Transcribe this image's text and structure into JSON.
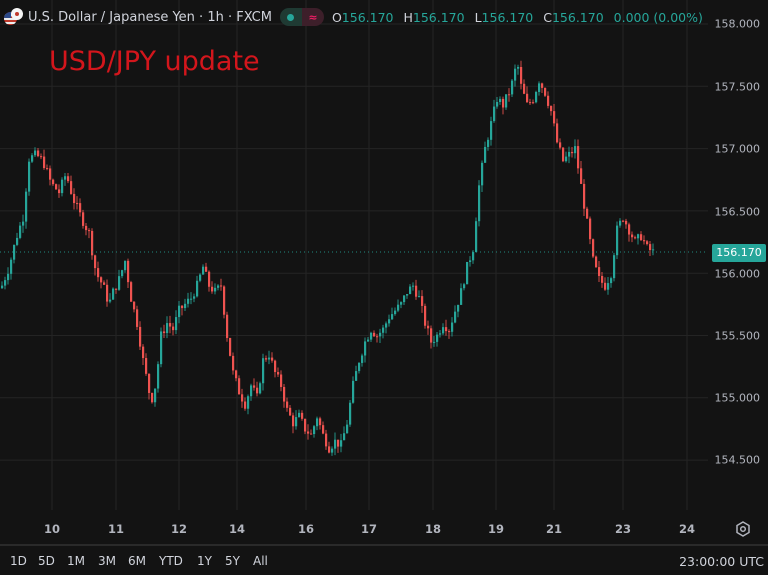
{
  "header": {
    "symbol_title": "U.S. Dollar / Japanese Yen · 1h · FXCM",
    "status_market_open_icon": "green-dot-icon",
    "status_delay_icon": "approx-equal-icon",
    "ohlc": {
      "o_label": "O",
      "o_value": "156.170",
      "h_label": "H",
      "h_value": "156.170",
      "l_label": "L",
      "l_value": "156.170",
      "c_label": "C",
      "c_value": "156.170",
      "change": "0.000 (0.00%)"
    }
  },
  "overlay": {
    "title": "USD/JPY update",
    "color": "#d3161c"
  },
  "price_axis": {
    "ticks": [
      "158.000",
      "157.500",
      "157.000",
      "156.500",
      "156.000",
      "155.500",
      "155.000",
      "154.500"
    ],
    "last_price": "156.170"
  },
  "time_axis": {
    "ticks": [
      "10",
      "11",
      "12",
      "14",
      "16",
      "17",
      "18",
      "19",
      "21",
      "23",
      "24"
    ]
  },
  "bottom_bar": {
    "ranges": [
      "1D",
      "5D",
      "1M",
      "3M",
      "6M",
      "YTD",
      "1Y",
      "5Y",
      "All"
    ],
    "clock": "23:00:00 UTC"
  },
  "colors": {
    "up": "#26a69a",
    "down": "#ef5350",
    "background": "#131313",
    "grid": "#242424",
    "last_price_bg": "#26a69a"
  },
  "chart_data": {
    "type": "candlestick",
    "title": "USD/JPY update",
    "symbol": "U.S. Dollar / Japanese Yen",
    "interval": "1h",
    "source": "FXCM",
    "xlabel": "",
    "ylabel": "",
    "ylim": [
      154.4,
      158.0
    ],
    "y_ticks": [
      158.0,
      157.5,
      157.0,
      156.5,
      156.0,
      155.5,
      155.0,
      154.5
    ],
    "x_tick_labels": [
      "10",
      "11",
      "12",
      "14",
      "16",
      "17",
      "18",
      "19",
      "21",
      "23",
      "24"
    ],
    "grid": true,
    "last_price": 156.17,
    "path_x": [
      0,
      8,
      15,
      22,
      28,
      35,
      42,
      50,
      58,
      65,
      72,
      80,
      88,
      95,
      102,
      108,
      112,
      118,
      124,
      130,
      136,
      142,
      148,
      152,
      156,
      160,
      166,
      172,
      178,
      184,
      190,
      196,
      202,
      208,
      214,
      220,
      226,
      232,
      238,
      244,
      250,
      256,
      262,
      268,
      274,
      280,
      286,
      292,
      298,
      304,
      310,
      316,
      322,
      328,
      334,
      340,
      346,
      352,
      358,
      364,
      370,
      376,
      382,
      388,
      394,
      400,
      406,
      412,
      418,
      424,
      430,
      436,
      442,
      448,
      454,
      460,
      466,
      472,
      478,
      484,
      490,
      496,
      502,
      508,
      512,
      516,
      520,
      526,
      532,
      538,
      544,
      550,
      556,
      562,
      568,
      574,
      580,
      586,
      592,
      598,
      604,
      610,
      616,
      622,
      628,
      634,
      640,
      646,
      652,
      656,
      660,
      666,
      672,
      678,
      684
    ],
    "path_close": [
      155.88,
      156.05,
      156.28,
      156.45,
      156.92,
      156.95,
      156.9,
      156.72,
      156.65,
      156.8,
      156.6,
      156.45,
      156.32,
      156.0,
      155.9,
      155.75,
      155.85,
      155.95,
      156.1,
      155.8,
      155.6,
      155.3,
      155.05,
      154.98,
      155.2,
      155.5,
      155.6,
      155.55,
      155.7,
      155.75,
      155.8,
      155.9,
      156.05,
      155.9,
      155.85,
      155.9,
      155.5,
      155.2,
      155.05,
      154.95,
      155.1,
      155.0,
      155.3,
      155.35,
      155.2,
      155.1,
      154.9,
      154.8,
      154.85,
      154.75,
      154.7,
      154.85,
      154.7,
      154.6,
      154.65,
      154.62,
      154.8,
      155.1,
      155.3,
      155.45,
      155.55,
      155.5,
      155.55,
      155.65,
      155.7,
      155.75,
      155.85,
      155.9,
      155.8,
      155.6,
      155.45,
      155.5,
      155.6,
      155.55,
      155.7,
      155.85,
      156.05,
      156.2,
      156.7,
      157.0,
      157.2,
      157.4,
      157.35,
      157.45,
      157.55,
      157.7,
      157.5,
      157.35,
      157.4,
      157.55,
      157.45,
      157.3,
      157.05,
      156.9,
      156.95,
      157.0,
      156.7,
      156.4,
      156.1,
      155.95,
      155.9,
      156.0,
      156.35,
      156.45,
      156.35,
      156.25,
      156.3,
      156.2,
      156.17
    ]
  }
}
